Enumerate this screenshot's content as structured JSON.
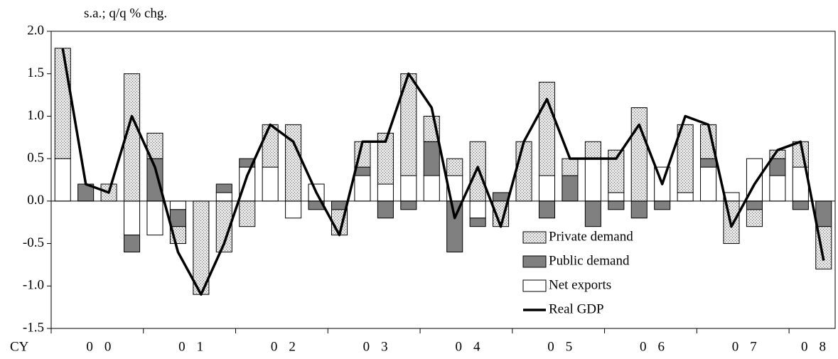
{
  "chart_data": {
    "type": "stacked-bar-line",
    "y_axis_label": "s.a.; q/q % chg.",
    "x_prefix": "CY",
    "year_labels": [
      "00",
      "01",
      "02",
      "03",
      "04",
      "05",
      "06",
      "07",
      "08"
    ],
    "categories": [
      null,
      null,
      null,
      null,
      null,
      null,
      null,
      null,
      null,
      null,
      null,
      null,
      null,
      null,
      null,
      null,
      null,
      null,
      null,
      null,
      null,
      null,
      null,
      null,
      null,
      null,
      null,
      null,
      null,
      null,
      null,
      null,
      null,
      null
    ],
    "ylim": [
      -1.5,
      2.0
    ],
    "yticks": [
      -1.5,
      {
        "value": -1.0,
        "label": "-1.0"
      },
      -0.5,
      {
        "value": 0.0,
        "label": "0.0"
      },
      0.5,
      {
        "value": 1.0,
        "label": "1.0"
      },
      1.5,
      {
        "value": 2.0,
        "label": "2.0"
      }
    ],
    "series": [
      {
        "name": "Private demand",
        "kind": "bar",
        "color": "#dcdcdc",
        "pattern": "dotted",
        "values": [
          1.3,
          0,
          0.2,
          1.5,
          0.3,
          -0.2,
          -1.1,
          -0.6,
          -0.3,
          0.5,
          0.9,
          0,
          -0.3,
          0.3,
          0.6,
          1.2,
          0.3,
          0.2,
          0.7,
          -0.3,
          0.7,
          1.1,
          0.2,
          0.2,
          0.5,
          1.1,
          0,
          0.8,
          0.4,
          -0.5,
          -0.2,
          0.1,
          0.3,
          -0.5
        ]
      },
      {
        "name": "Public demand",
        "kind": "bar",
        "color": "#808080",
        "values": [
          0,
          0.2,
          0,
          -0.2,
          0.5,
          -0.2,
          0,
          0.1,
          0.1,
          0,
          0,
          -0.1,
          -0.1,
          0.1,
          -0.2,
          -0.1,
          0.4,
          -0.6,
          -0.1,
          0.1,
          0,
          -0.2,
          0.3,
          -0.3,
          -0.1,
          -0.2,
          -0.1,
          0,
          0.1,
          0,
          -0.1,
          0.2,
          -0.1,
          -0.3
        ]
      },
      {
        "name": "Net exports",
        "kind": "bar",
        "color": "#ffffff",
        "values": [
          0.5,
          0,
          0,
          -0.4,
          -0.4,
          -0.1,
          0,
          0.1,
          0.4,
          0.4,
          -0.2,
          0.2,
          0,
          0.3,
          0.2,
          0.3,
          0.3,
          0.3,
          -0.2,
          0,
          0,
          0.3,
          0,
          0.5,
          0.1,
          0,
          0.4,
          0.1,
          0.4,
          0.1,
          0.5,
          0.3,
          0.4,
          0
        ]
      },
      {
        "name": "Real GDP",
        "kind": "line",
        "color": "#000000",
        "values": [
          1.8,
          0.2,
          0.1,
          1.0,
          0.4,
          -0.6,
          -1.1,
          -0.5,
          0.3,
          0.9,
          0.7,
          0.1,
          -0.4,
          0.7,
          0.7,
          1.5,
          1.1,
          -0.2,
          0.4,
          -0.3,
          0.7,
          1.2,
          0.5,
          0.5,
          0.5,
          0.9,
          0.2,
          1.0,
          0.9,
          -0.3,
          0.2,
          0.6,
          0.7,
          -0.7
        ]
      }
    ]
  }
}
